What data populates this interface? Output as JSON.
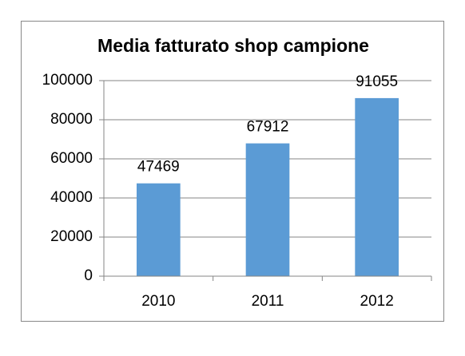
{
  "chart_data": {
    "type": "bar",
    "title": "Media fatturato shop campione",
    "categories": [
      "2010",
      "2011",
      "2012"
    ],
    "values": [
      47469,
      67912,
      91055
    ],
    "color": "#5b9bd5",
    "ylim": [
      0,
      100000
    ],
    "yticks": [
      0,
      20000,
      40000,
      60000,
      80000,
      100000
    ],
    "grid": true,
    "data_labels": true
  }
}
